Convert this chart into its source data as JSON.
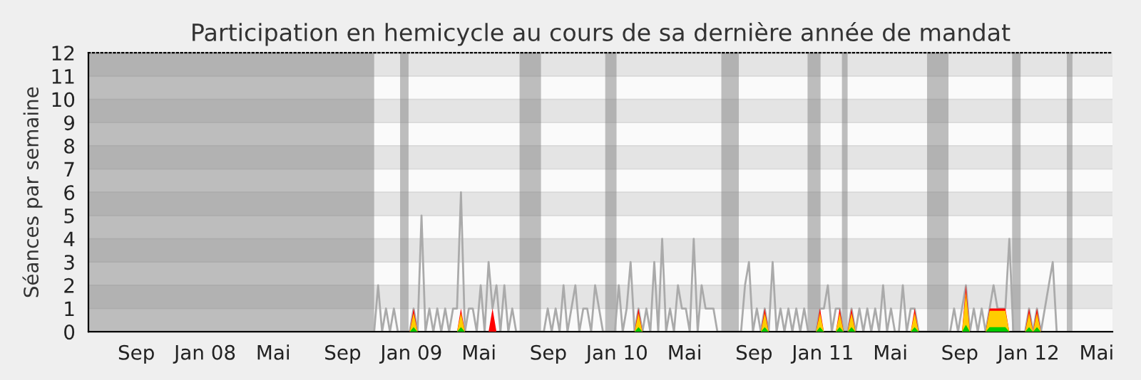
{
  "chart_data": {
    "type": "line",
    "title": "Participation en hemicycle au cours de sa dernière année de mandat",
    "ylabel": "Séances par semaine",
    "xlim": [
      "2007-06-08",
      "2012-05-29"
    ],
    "xticks": [
      {
        "value": "2007-09-01",
        "label": "Sep"
      },
      {
        "value": "2008-01-01",
        "label": "Jan 08"
      },
      {
        "value": "2008-05-01",
        "label": "Mai"
      },
      {
        "value": "2008-09-01",
        "label": "Sep"
      },
      {
        "value": "2009-01-01",
        "label": "Jan 09"
      },
      {
        "value": "2009-05-01",
        "label": "Mai"
      },
      {
        "value": "2009-09-01",
        "label": "Sep"
      },
      {
        "value": "2010-01-01",
        "label": "Jan 10"
      },
      {
        "value": "2010-05-01",
        "label": "Mai"
      },
      {
        "value": "2010-09-01",
        "label": "Sep"
      },
      {
        "value": "2011-01-01",
        "label": "Jan 11"
      },
      {
        "value": "2011-05-01",
        "label": "Mai"
      },
      {
        "value": "2011-09-01",
        "label": "Sep"
      },
      {
        "value": "2012-01-01",
        "label": "Jan 12"
      },
      {
        "value": "2012-05-01",
        "label": "Mai"
      }
    ],
    "ylim": [
      0,
      12
    ],
    "yticks": [
      0,
      1,
      2,
      3,
      4,
      5,
      6,
      7,
      8,
      9,
      10,
      11,
      12
    ],
    "grid": "y",
    "legend": false,
    "bands": [
      {
        "axis": "x",
        "from": "2007-06-08",
        "to": "2008-10-27",
        "color": "#7f7f7f"
      },
      {
        "axis": "x",
        "from": "2008-12-12",
        "to": "2008-12-27",
        "color": "#7f7f7f"
      },
      {
        "axis": "x",
        "from": "2009-07-12",
        "to": "2009-08-19",
        "color": "#7f7f7f"
      },
      {
        "axis": "x",
        "from": "2009-12-11",
        "to": "2009-12-31",
        "color": "#7f7f7f"
      },
      {
        "axis": "x",
        "from": "2010-07-05",
        "to": "2010-08-05",
        "color": "#7f7f7f"
      },
      {
        "axis": "x",
        "from": "2010-12-05",
        "to": "2010-12-28",
        "color": "#7f7f7f"
      },
      {
        "axis": "x",
        "from": "2011-02-04",
        "to": "2011-02-14",
        "color": "#7f7f7f"
      },
      {
        "axis": "x",
        "from": "2011-07-05",
        "to": "2011-08-12",
        "color": "#7f7f7f"
      },
      {
        "axis": "x",
        "from": "2011-12-03",
        "to": "2011-12-18",
        "color": "#7f7f7f"
      },
      {
        "axis": "x",
        "from": "2012-03-09",
        "to": "2012-03-19",
        "color": "#7f7f7f"
      }
    ],
    "series": [
      {
        "color": "#aaaaaa",
        "x": [
          "2008-10-27",
          "2008-11-03",
          "2008-11-10",
          "2008-11-17",
          "2008-11-24",
          "2008-12-01",
          "2008-12-08",
          "2008-12-15",
          "2008-12-22",
          "2008-12-29",
          "2009-01-05",
          "2009-01-12",
          "2009-01-19",
          "2009-01-26",
          "2009-02-02",
          "2009-02-09",
          "2009-02-16",
          "2009-02-23",
          "2009-03-02",
          "2009-03-09",
          "2009-03-16",
          "2009-03-23",
          "2009-03-30",
          "2009-04-06",
          "2009-04-13",
          "2009-04-20",
          "2009-04-27",
          "2009-05-04",
          "2009-05-11",
          "2009-05-18",
          "2009-05-25",
          "2009-06-01",
          "2009-06-08",
          "2009-06-15",
          "2009-06-22",
          "2009-06-29",
          "2009-07-06",
          "2009-07-13",
          "2009-07-20",
          "2009-07-27",
          "2009-08-03",
          "2009-08-10",
          "2009-08-17",
          "2009-08-24",
          "2009-08-31",
          "2009-09-07",
          "2009-09-14",
          "2009-09-21",
          "2009-09-28",
          "2009-10-05",
          "2009-10-12",
          "2009-10-19",
          "2009-10-26",
          "2009-11-02",
          "2009-11-09",
          "2009-11-16",
          "2009-11-23",
          "2009-11-30",
          "2009-12-07",
          "2009-12-14",
          "2009-12-21",
          "2009-12-28",
          "2010-01-04",
          "2010-01-11",
          "2010-01-18",
          "2010-01-25",
          "2010-02-01",
          "2010-02-08",
          "2010-02-15",
          "2010-02-22",
          "2010-03-01",
          "2010-03-08",
          "2010-03-15",
          "2010-03-22",
          "2010-03-29",
          "2010-04-05",
          "2010-04-12",
          "2010-04-19",
          "2010-04-26",
          "2010-05-03",
          "2010-05-10",
          "2010-05-17",
          "2010-05-24",
          "2010-05-31",
          "2010-06-07",
          "2010-06-14",
          "2010-06-21",
          "2010-06-28",
          "2010-07-05",
          "2010-07-12",
          "2010-07-19",
          "2010-07-26",
          "2010-08-02",
          "2010-08-09",
          "2010-08-16",
          "2010-08-23",
          "2010-08-30",
          "2010-09-06",
          "2010-09-13",
          "2010-09-20",
          "2010-09-27",
          "2010-10-04",
          "2010-10-11",
          "2010-10-18",
          "2010-10-25",
          "2010-11-01",
          "2010-11-08",
          "2010-11-15",
          "2010-11-22",
          "2010-11-29",
          "2010-12-06",
          "2010-12-13",
          "2010-12-20",
          "2010-12-27",
          "2011-01-03",
          "2011-01-10",
          "2011-01-17",
          "2011-01-24",
          "2011-01-31",
          "2011-02-07",
          "2011-02-14",
          "2011-02-21",
          "2011-02-28",
          "2011-03-07",
          "2011-03-14",
          "2011-03-21",
          "2011-03-28",
          "2011-04-04",
          "2011-04-11",
          "2011-04-18",
          "2011-04-25",
          "2011-05-02",
          "2011-05-09",
          "2011-05-16",
          "2011-05-23",
          "2011-05-30",
          "2011-06-06",
          "2011-06-13",
          "2011-06-20",
          "2011-06-27",
          "2011-07-04",
          "2011-07-11",
          "2011-07-18",
          "2011-07-25",
          "2011-08-01",
          "2011-08-08",
          "2011-08-15",
          "2011-08-22",
          "2011-08-29",
          "2011-09-05",
          "2011-09-12",
          "2011-09-19",
          "2011-09-26",
          "2011-10-03",
          "2011-10-10",
          "2011-10-17",
          "2011-10-24",
          "2011-10-31",
          "2011-11-07",
          "2011-11-14",
          "2011-11-21",
          "2011-11-28",
          "2011-12-05",
          "2011-12-12",
          "2011-12-19",
          "2011-12-26",
          "2012-01-02",
          "2012-01-09",
          "2012-01-16",
          "2012-01-23",
          "2012-01-30",
          "2012-02-06",
          "2012-02-13",
          "2012-02-20"
        ],
        "values": [
          0,
          2,
          0,
          1,
          0,
          1,
          0,
          0,
          0,
          0,
          1,
          0,
          5,
          0,
          1,
          0,
          1,
          0,
          1,
          0,
          1,
          1,
          6,
          0,
          1,
          1,
          0,
          2,
          0,
          3,
          1,
          2,
          0,
          2,
          0,
          1,
          0,
          0,
          0,
          0,
          0,
          0,
          0,
          0,
          1,
          0,
          1,
          0,
          2,
          0,
          1,
          2,
          0,
          1,
          1,
          0,
          2,
          1,
          0,
          0,
          0,
          0,
          2,
          0,
          1,
          3,
          0,
          1,
          0,
          1,
          0,
          3,
          0,
          4,
          0,
          1,
          0,
          2,
          1,
          1,
          0,
          4,
          0,
          2,
          1,
          1,
          1,
          0,
          0,
          0,
          0,
          0,
          0,
          0,
          2,
          3,
          0,
          1,
          0,
          1,
          0,
          3,
          0,
          1,
          0,
          1,
          0,
          1,
          0,
          1,
          0,
          0,
          0,
          1,
          1,
          2,
          0,
          1,
          1,
          0,
          0,
          1,
          0,
          1,
          0,
          1,
          0,
          1,
          0,
          2,
          0,
          1,
          0,
          0,
          2,
          0,
          1,
          1,
          0,
          0,
          0,
          0,
          0,
          0,
          0,
          0,
          0,
          1,
          0,
          1,
          2,
          0,
          1,
          0,
          1,
          0,
          1,
          2,
          1,
          1,
          1,
          4,
          0,
          0,
          0,
          0,
          1,
          0,
          1,
          0,
          1,
          2,
          3,
          0
        ]
      },
      {
        "type": "area",
        "color": "#ff0000",
        "x": [
          "2008-12-29",
          "2009-01-05",
          "2009-01-12",
          "2009-03-23",
          "2009-03-30",
          "2009-04-06",
          "2009-05-18",
          "2009-05-25",
          "2009-06-01",
          "2010-02-01",
          "2010-02-08",
          "2010-02-15",
          "2010-09-13",
          "2010-09-20",
          "2010-09-27",
          "2010-12-20",
          "2010-12-27",
          "2011-01-03",
          "2011-01-24",
          "2011-01-31",
          "2011-02-07",
          "2011-02-14",
          "2011-02-21",
          "2011-02-28",
          "2011-06-06",
          "2011-06-13",
          "2011-06-20",
          "2011-09-05",
          "2011-09-12",
          "2011-09-19",
          "2011-10-17",
          "2011-10-24",
          "2011-10-31",
          "2011-11-07",
          "2011-11-14",
          "2011-11-21",
          "2011-11-28",
          "2011-12-26",
          "2012-01-02",
          "2012-01-09",
          "2012-01-16",
          "2012-01-23"
        ],
        "values": [
          0,
          1,
          0,
          0,
          1,
          0,
          0,
          1,
          0,
          0,
          1,
          0,
          0,
          1,
          0,
          0,
          1,
          0,
          0,
          1,
          0,
          0,
          1,
          0,
          0,
          1,
          0,
          0,
          2,
          0,
          0,
          1,
          1,
          1,
          1,
          1,
          0,
          0,
          1,
          0,
          1,
          0
        ]
      },
      {
        "type": "area",
        "color": "#ffcc00",
        "x": [
          "2008-12-29",
          "2009-01-05",
          "2009-01-12",
          "2009-03-23",
          "2009-03-30",
          "2009-04-06",
          "2010-02-01",
          "2010-02-08",
          "2010-02-15",
          "2010-09-13",
          "2010-09-20",
          "2010-09-27",
          "2010-12-20",
          "2010-12-27",
          "2011-01-03",
          "2011-01-24",
          "2011-01-31",
          "2011-02-07",
          "2011-02-14",
          "2011-02-21",
          "2011-02-28",
          "2011-06-06",
          "2011-06-13",
          "2011-06-20",
          "2011-09-05",
          "2011-09-12",
          "2011-09-19",
          "2011-10-17",
          "2011-10-24",
          "2011-10-31",
          "2011-11-07",
          "2011-11-14",
          "2011-11-21",
          "2011-11-28",
          "2011-12-26",
          "2012-01-02",
          "2012-01-09",
          "2012-01-16",
          "2012-01-23"
        ],
        "values": [
          0,
          0.8,
          0,
          0,
          0.8,
          0,
          0,
          0.8,
          0,
          0,
          0.8,
          0,
          0,
          0.8,
          0,
          0,
          0.8,
          0,
          0,
          0.8,
          0,
          0,
          0.8,
          0,
          0,
          1.7,
          0,
          0,
          0.9,
          0.9,
          0.9,
          0.9,
          0.9,
          0,
          0,
          0.8,
          0,
          0.8,
          0
        ]
      },
      {
        "type": "area",
        "color": "#00cc00",
        "x": [
          "2008-12-29",
          "2009-01-05",
          "2009-01-12",
          "2009-03-23",
          "2009-03-30",
          "2009-04-06",
          "2010-02-01",
          "2010-02-08",
          "2010-02-15",
          "2010-09-13",
          "2010-09-20",
          "2010-09-27",
          "2010-12-20",
          "2010-12-27",
          "2011-01-03",
          "2011-01-24",
          "2011-01-31",
          "2011-02-07",
          "2011-02-14",
          "2011-02-21",
          "2011-02-28",
          "2011-06-06",
          "2011-06-13",
          "2011-06-20",
          "2011-09-05",
          "2011-09-12",
          "2011-09-19",
          "2011-10-17",
          "2011-10-24",
          "2011-10-31",
          "2011-11-07",
          "2011-11-14",
          "2011-11-21",
          "2011-11-28",
          "2011-12-26",
          "2012-01-02",
          "2012-01-09",
          "2012-01-16",
          "2012-01-23"
        ],
        "values": [
          0,
          0.2,
          0,
          0,
          0.2,
          0,
          0,
          0.2,
          0,
          0,
          0.2,
          0,
          0,
          0.2,
          0,
          0,
          0.2,
          0,
          0,
          0.2,
          0,
          0,
          0.2,
          0,
          0,
          0.3,
          0,
          0,
          0.2,
          0.2,
          0.2,
          0.2,
          0.2,
          0,
          0,
          0.2,
          0,
          0.2,
          0
        ]
      }
    ]
  }
}
